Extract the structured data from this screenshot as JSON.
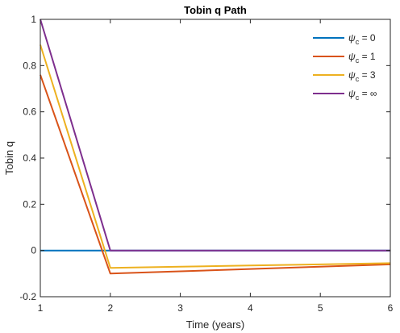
{
  "chart_data": {
    "type": "line",
    "title": "Tobin q Path",
    "xlabel": "Time (years)",
    "ylabel": "Tobin q",
    "xlim": [
      1,
      6
    ],
    "ylim": [
      -0.2,
      1
    ],
    "xticks": [
      1,
      2,
      3,
      4,
      5,
      6
    ],
    "yticks": [
      -0.2,
      0,
      0.2,
      0.4,
      0.6,
      0.8,
      1
    ],
    "ytick_labels": [
      "-0.2",
      "0",
      "0.2",
      "0.4",
      "0.6",
      "0.8",
      "1"
    ],
    "grid": false,
    "legend_position": "top-right",
    "series": [
      {
        "name_prefix": "ψ",
        "name_sub": "c",
        "name_suffix": " = 0",
        "color": "#0072BD",
        "x": [
          1,
          2,
          3,
          4,
          5,
          6
        ],
        "y": [
          0,
          0,
          0,
          0,
          0,
          0
        ]
      },
      {
        "name_prefix": "ψ",
        "name_sub": "c",
        "name_suffix": " = 1",
        "color": "#D95319",
        "x": [
          1,
          2,
          3,
          4,
          5,
          6
        ],
        "y": [
          0.76,
          -0.1,
          -0.09,
          -0.08,
          -0.07,
          -0.06
        ]
      },
      {
        "name_prefix": "ψ",
        "name_sub": "c",
        "name_suffix": " = 3",
        "color": "#EDB120",
        "x": [
          1,
          2,
          3,
          4,
          5,
          6
        ],
        "y": [
          0.89,
          -0.075,
          -0.07,
          -0.065,
          -0.06,
          -0.055
        ]
      },
      {
        "name_prefix": "ψ",
        "name_sub": "c",
        "name_suffix": " = ∞",
        "color": "#7E2F8E",
        "x": [
          1,
          2,
          3,
          4,
          5,
          6
        ],
        "y": [
          1,
          0,
          0,
          0,
          0,
          0
        ]
      }
    ]
  }
}
